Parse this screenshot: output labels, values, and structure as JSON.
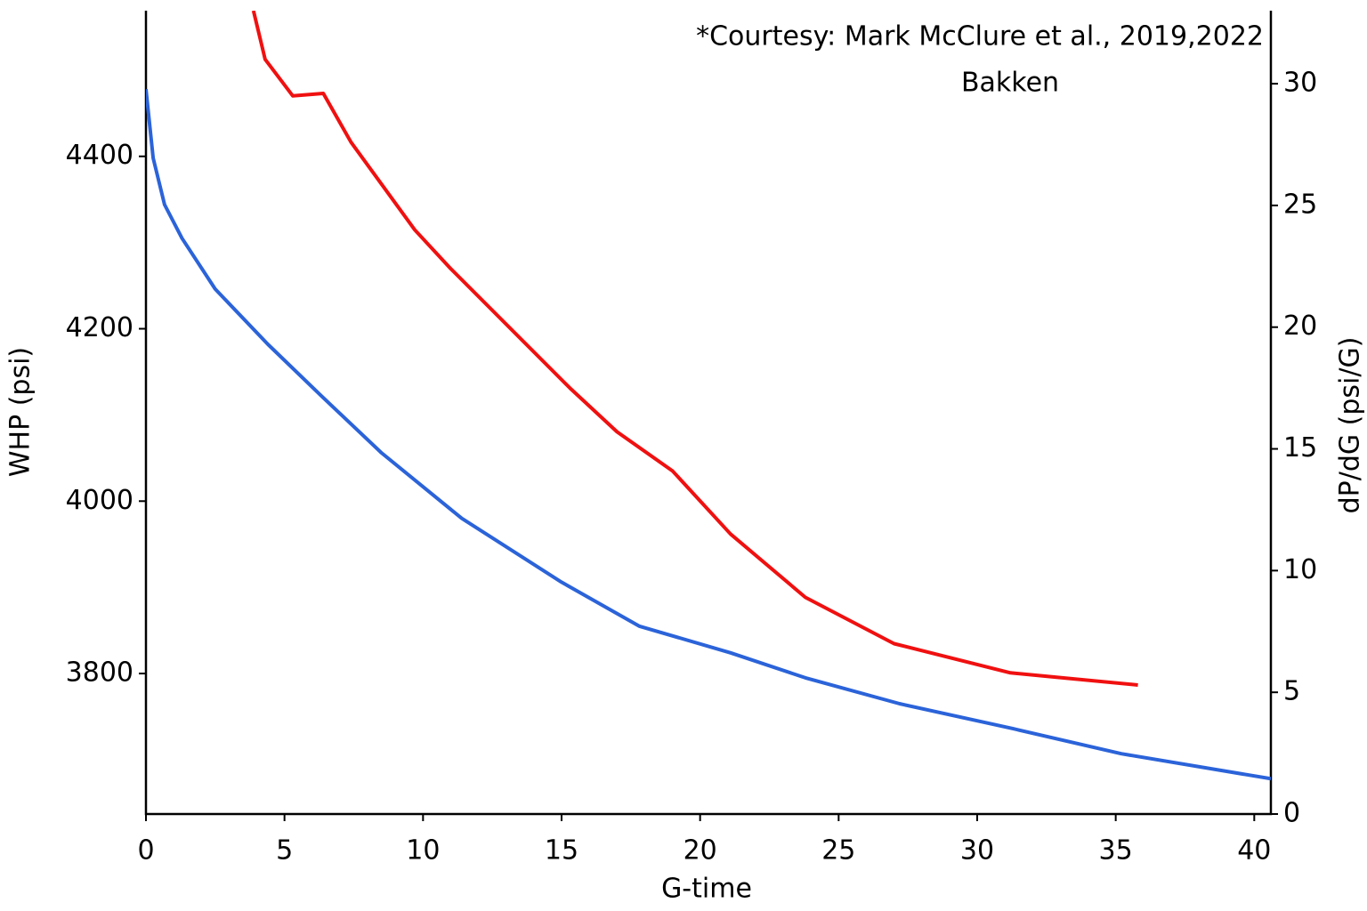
{
  "chart_data": {
    "type": "line",
    "annotation": "*Courtesy: Mark McClure et al., 2019,2022",
    "title": "Bakken",
    "x_label": "G-time",
    "y_label": "WHP (psi)",
    "y2_label": "dP/dG (psi/G)",
    "xlim": [
      0,
      40.6
    ],
    "xticks": [
      0,
      5,
      10,
      15,
      20,
      25,
      30,
      35,
      40
    ],
    "ylim": [
      3637,
      4569
    ],
    "yticks": [
      3800,
      4000,
      4200,
      4400
    ],
    "y2lim": [
      0,
      33
    ],
    "y2ticks": [
      0,
      5,
      10,
      15,
      20,
      25,
      30
    ],
    "grid": false,
    "series": [
      {
        "name": "WHP",
        "color": "#2b63d9",
        "x": [
          0,
          0.26,
          0.67,
          1.3,
          2.5,
          4.4,
          6.3,
          8.5,
          11.4,
          15,
          17.8,
          21.1,
          23.8,
          27.2,
          31.3,
          35.2,
          40.6
        ],
        "values": [
          4478,
          4398,
          4344,
          4305,
          4246,
          4182,
          4123,
          4056,
          3980,
          3906,
          3855,
          3824,
          3795,
          3765,
          3736,
          3707,
          3678
        ]
      },
      {
        "name": "dP/dG",
        "color": "#f01010",
        "axis": "y2",
        "x": [
          3.88,
          4.3,
          5.3,
          6.4,
          7.4,
          9.7,
          11.0,
          15.3,
          17.0,
          19.0,
          21.1,
          23.8,
          27.0,
          31.2,
          35.8
        ],
        "values": [
          33,
          31.0,
          29.5,
          29.6,
          27.6,
          24.0,
          22.4,
          17.5,
          15.7,
          14.1,
          11.5,
          8.9,
          7.0,
          5.8,
          5.3
        ]
      }
    ]
  }
}
